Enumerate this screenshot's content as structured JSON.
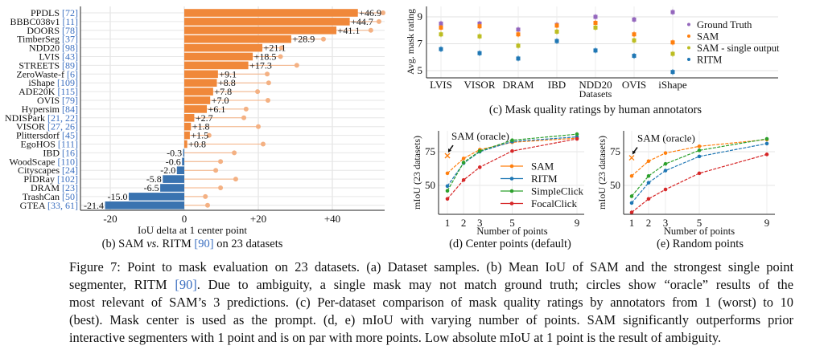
{
  "colors": {
    "sam_bar": "#f0883a",
    "ritm_bar": "#3a73b0",
    "oracle": "#f4b183",
    "citation": "#3b6fc0",
    "ground_truth": "#9467bd",
    "sam": "#ff7f0e",
    "sam_single": "#bcbd22",
    "ritm": "#1f77b4",
    "simpleclick": "#2ca02c",
    "focalclick": "#d62728"
  },
  "chart_data": [
    {
      "id": "b",
      "type": "bar",
      "orientation": "horizontal",
      "caption": "(b) SAM vs. RITM [90] on 23 datasets",
      "caption_parts": [
        "(b) SAM ",
        "vs.",
        " RITM ",
        "[90]",
        " on 23 datasets"
      ],
      "xlabel": "IoU delta at 1 center point",
      "xticks": [
        "-20",
        "0",
        "+20",
        "+40"
      ],
      "xtick_values": [
        -20,
        0,
        20,
        40
      ],
      "xlim": [
        -28,
        54
      ],
      "grid": true,
      "categories": [
        {
          "name": "PPDLS",
          "ref": "[72]",
          "value": 46.9,
          "label": "+46.9",
          "oracle": 53.7
        },
        {
          "name": "BBBC038v1",
          "ref": "[11]",
          "value": 44.7,
          "label": "+44.7",
          "oracle": 52.6
        },
        {
          "name": "DOORS",
          "ref": "[78]",
          "value": 41.1,
          "label": "+41.1",
          "oracle": 50.4
        },
        {
          "name": "TimberSeg",
          "ref": "[37]",
          "value": 28.9,
          "label": "+28.9",
          "oracle": 37.6
        },
        {
          "name": "NDD20",
          "ref": "[98]",
          "value": 21.1,
          "label": "+21.1",
          "oracle": 26.3
        },
        {
          "name": "LVIS",
          "ref": "[43]",
          "value": 18.5,
          "label": "+18.5",
          "oracle": 26.0
        },
        {
          "name": "STREETS",
          "ref": "[89]",
          "value": 17.3,
          "label": "+17.3",
          "oracle": 30.4
        },
        {
          "name": "ZeroWaste-f",
          "ref": "[6]",
          "value": 9.1,
          "label": "+9.1",
          "oracle": 22.4
        },
        {
          "name": "iShape",
          "ref": "[109]",
          "value": 8.8,
          "label": "+8.8",
          "oracle": 22.8
        },
        {
          "name": "ADE20K",
          "ref": "[115]",
          "value": 7.8,
          "label": "+7.8",
          "oracle": 19.8
        },
        {
          "name": "OVIS",
          "ref": "[79]",
          "value": 7.0,
          "label": "+7.0",
          "oracle": 22.6
        },
        {
          "name": "Hypersim",
          "ref": "[84]",
          "value": 6.1,
          "label": "+6.1",
          "oracle": 16.7
        },
        {
          "name": "NDISPark",
          "ref": "[21, 22]",
          "value": 2.7,
          "label": "+2.7",
          "oracle": 16.1
        },
        {
          "name": "VISOR",
          "ref": "[27, 26]",
          "value": 1.8,
          "label": "+1.8",
          "oracle": 20.0
        },
        {
          "name": "Plittersdorf",
          "ref": "[45]",
          "value": 1.5,
          "label": "+1.5",
          "oracle": 6.7
        },
        {
          "name": "EgoHOS",
          "ref": "[111]",
          "value": 0.8,
          "label": "+0.8",
          "oracle": 21.3
        },
        {
          "name": "IBD",
          "ref": "[16]",
          "value": -0.3,
          "label": "-0.3",
          "oracle": 13.5
        },
        {
          "name": "WoodScape",
          "ref": "[110]",
          "value": -0.6,
          "label": "-0.6",
          "oracle": 9.8
        },
        {
          "name": "Cityscapes",
          "ref": "[24]",
          "value": -2.0,
          "label": "-2.0",
          "oracle": 8.5
        },
        {
          "name": "PIDRay",
          "ref": "[102]",
          "value": -5.8,
          "label": "-5.8",
          "oracle": 13.9
        },
        {
          "name": "DRAM",
          "ref": "[23]",
          "value": -6.5,
          "label": "-6.5",
          "oracle": 9.8
        },
        {
          "name": "TrashCan",
          "ref": "[50]",
          "value": -15.0,
          "label": "-15.0",
          "oracle": 5.7
        },
        {
          "name": "GTEA",
          "ref": "[33, 61]",
          "value": -21.4,
          "label": "-21.4",
          "oracle": 6.3
        }
      ]
    },
    {
      "id": "c",
      "type": "scatter",
      "caption": "(c) Mask quality ratings by human annotators",
      "xlabel": "Datasets",
      "ylabel": "Avg. mask rating",
      "yticks": [
        "9",
        "7",
        "5"
      ],
      "ytick_values": [
        9,
        7,
        5
      ],
      "ylim": [
        4.6,
        9.6
      ],
      "grid": true,
      "legend_position": "right",
      "categories": [
        "LVIS",
        "VISOR",
        "DRAM",
        "IBD",
        "NDD20",
        "OVIS",
        "iShape"
      ],
      "series": [
        {
          "name": "Ground Truth",
          "color_key": "ground_truth",
          "values": [
            8.5,
            8.5,
            8.05,
            8.4,
            9.0,
            8.8,
            9.35
          ]
        },
        {
          "name": "SAM",
          "color_key": "sam",
          "values": [
            8.2,
            8.3,
            7.7,
            8.35,
            8.55,
            7.7,
            7.1
          ]
        },
        {
          "name": "SAM - single output",
          "color_key": "sam_single",
          "values": [
            7.7,
            7.55,
            6.85,
            7.9,
            8.2,
            7.25,
            6.25
          ]
        },
        {
          "name": "RITM",
          "color_key": "ritm",
          "values": [
            6.6,
            6.3,
            5.9,
            7.2,
            6.5,
            6.1,
            4.9
          ]
        }
      ]
    },
    {
      "id": "d",
      "type": "line",
      "caption": "(d) Center points (default)",
      "xlabel": "Number of points",
      "ylabel": "mIoU (23 datasets)",
      "x": [
        1,
        2,
        3,
        5,
        9
      ],
      "xticks": [
        "1",
        "2",
        "3",
        "5",
        "9"
      ],
      "yticks": [
        "75",
        "50"
      ],
      "ytick_values": [
        75,
        50
      ],
      "ylim": [
        29,
        89
      ],
      "grid": true,
      "legend_position": "center-right",
      "annotation": "SAM (oracle)",
      "oracle": {
        "x": 1,
        "y": 72
      },
      "series": [
        {
          "name": "SAM",
          "color_key": "sam",
          "values": [
            59,
            70,
            76.5,
            82,
            85
          ]
        },
        {
          "name": "RITM",
          "color_key": "ritm",
          "values": [
            49.5,
            66.5,
            75,
            82.5,
            86
          ]
        },
        {
          "name": "SimpleClick",
          "color_key": "simpleclick",
          "values": [
            46,
            67,
            75.5,
            83.5,
            88
          ]
        },
        {
          "name": "FocalClick",
          "color_key": "focalclick",
          "values": [
            40,
            54,
            63.5,
            75.5,
            84.5
          ]
        }
      ]
    },
    {
      "id": "e",
      "type": "line",
      "caption": "(e) Random points",
      "xlabel": "Number of points",
      "ylabel": "mIoU (23 datasets)",
      "x": [
        1,
        2,
        3,
        5,
        9
      ],
      "xticks": [
        "1",
        "2",
        "3",
        "5",
        "9"
      ],
      "yticks": [
        "75",
        "50"
      ],
      "ytick_values": [
        75,
        50
      ],
      "ylim": [
        29,
        89
      ],
      "grid": true,
      "annotation": "SAM (oracle)",
      "oracle": {
        "x": 1,
        "y": 70.5
      },
      "series": [
        {
          "name": "SAM",
          "color_key": "sam",
          "values": [
            57,
            68,
            74,
            79,
            84
          ]
        },
        {
          "name": "RITM",
          "color_key": "ritm",
          "values": [
            37,
            52,
            61,
            71.5,
            81
          ]
        },
        {
          "name": "SimpleClick",
          "color_key": "simpleclick",
          "values": [
            42,
            57,
            66,
            76,
            84.5
          ]
        },
        {
          "name": "FocalClick",
          "color_key": "focalclick",
          "values": [
            30,
            40,
            47,
            59,
            73
          ]
        }
      ]
    }
  ],
  "caption": {
    "line1": "Figure 7: Point to mask evaluation on 23 datasets. (a) Dataset samples. (b) Mean IoU of SAM and the strongest single point",
    "line2a": "segmenter, RITM ",
    "line2ref": "[90]",
    "line2b": ". Due to ambiguity, a single mask may not match ground truth; circles show “oracle” results of the",
    "line3": "most relevant of SAM’s 3 predictions. (c) Per-dataset comparison of mask quality ratings by annotators from 1 (worst) to 10",
    "line4": "(best). Mask center is used as the prompt. (d, e) mIoU with varying number of points. SAM significantly outperforms prior",
    "line5": "interactive segmenters with 1 point and is on par with more points. Low absolute mIoU at 1 point is the result of ambiguity."
  }
}
